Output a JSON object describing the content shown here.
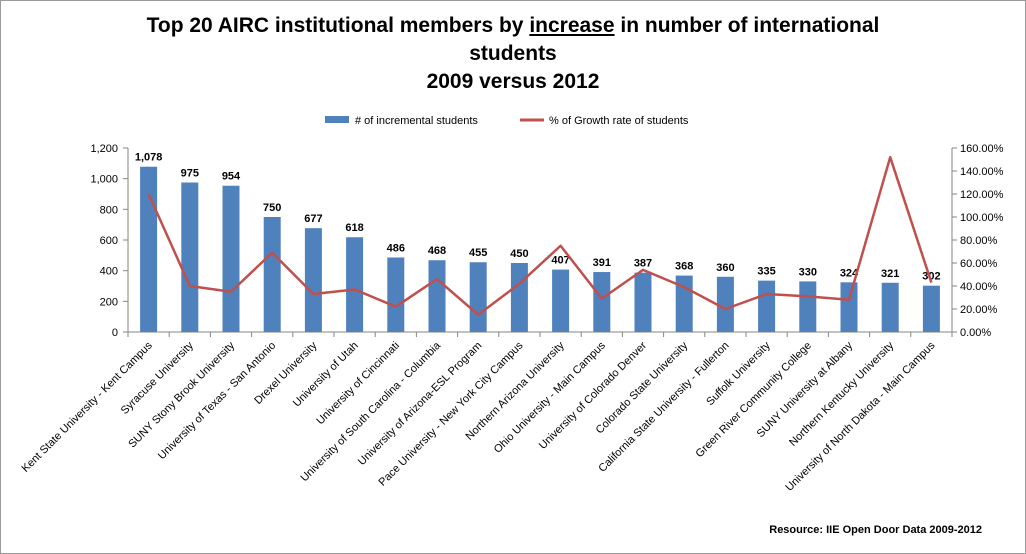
{
  "chart_data": {
    "type": "bar+line",
    "title_parts": {
      "line1_before": "Top 20 AIRC institutional members by ",
      "line1_underlined": "increase",
      "line1_after": " in number of international",
      "line2": "students",
      "line3": "2009 versus 2012"
    },
    "categories": [
      "Kent State University - Kent Campus",
      "Syracuse University",
      "SUNY Stony Brook University",
      "University of Texas - San Antonio",
      "Drexel University",
      "University of Utah",
      "University of Cincinnati",
      "University of South Carolina - Columbia",
      "University of Arizona-ESL Program",
      "Pace University - New York City Campus",
      "Northern Arizona University",
      "Ohio University - Main Campus",
      "University of Colorado Denver",
      "Colorado State University",
      "California State University - Fullerton",
      "Suffolk University",
      "Green River Community College",
      "SUNY University at Albany",
      "Northern Kentucky University",
      "University of North Dakota - Main Campus"
    ],
    "series": [
      {
        "name": "# of incremental students",
        "type": "bar",
        "axis": "left",
        "color": "#4F81BD",
        "values": [
          1078,
          975,
          954,
          750,
          677,
          618,
          486,
          468,
          455,
          450,
          407,
          391,
          387,
          368,
          360,
          335,
          330,
          324,
          321,
          302
        ],
        "labels": [
          "1,078",
          "975",
          "954",
          "750",
          "677",
          "618",
          "486",
          "468",
          "455",
          "450",
          "407",
          "391",
          "387",
          "368",
          "360",
          "335",
          "330",
          "324",
          "321",
          "302"
        ]
      },
      {
        "name": "% of Growth rate of students",
        "type": "line",
        "axis": "right",
        "color": "#C0504D",
        "values": [
          120,
          40,
          35,
          69,
          33,
          37,
          22,
          46,
          15,
          42,
          75,
          29,
          54,
          39,
          20,
          33,
          31,
          28,
          152,
          43
        ]
      }
    ],
    "y_left": {
      "min": 0,
      "max": 1200,
      "ticks": [
        0,
        200,
        400,
        600,
        800,
        1000,
        1200
      ],
      "tick_labels": [
        "0",
        "200",
        "400",
        "600",
        "800",
        "1,000",
        "1,200"
      ]
    },
    "y_right": {
      "min": 0,
      "max": 160,
      "ticks": [
        0,
        20,
        40,
        60,
        80,
        100,
        120,
        140,
        160
      ],
      "tick_labels": [
        "0.00%",
        "20.00%",
        "40.00%",
        "60.00%",
        "80.00%",
        "100.00%",
        "120.00%",
        "140.00%",
        "160.00%"
      ]
    },
    "legend_position": "top-center",
    "grid": false
  },
  "source_note": "Resource: IIE Open Door Data 2009-2012"
}
